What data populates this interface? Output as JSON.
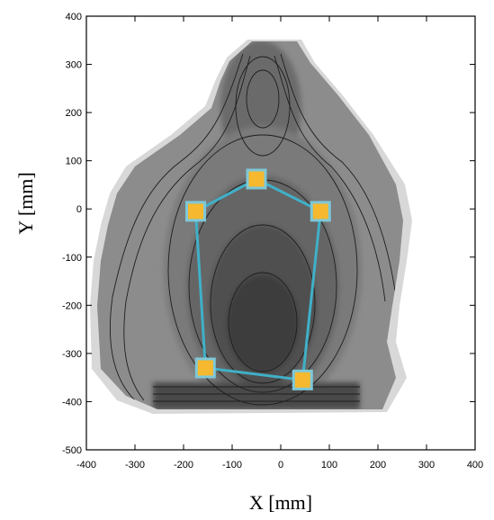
{
  "chart_data": {
    "type": "scatter",
    "title": "",
    "xlabel": "X [mm]",
    "ylabel": "Y [mm]",
    "xlim": [
      -400,
      400
    ],
    "ylim": [
      -500,
      400
    ],
    "x_ticks": [
      -400,
      -300,
      -200,
      -100,
      0,
      100,
      200,
      300,
      400
    ],
    "y_ticks": [
      400,
      300,
      200,
      100,
      0,
      -100,
      -200,
      -300,
      -400,
      -500
    ],
    "grid": false,
    "background": "grayscale contour map",
    "series": [
      {
        "points": [
          {
            "x": -50,
            "y": 62
          },
          {
            "x": 82,
            "y": -5
          },
          {
            "x": 45,
            "y": -355
          },
          {
            "x": -155,
            "y": -330
          },
          {
            "x": -175,
            "y": -5
          }
        ],
        "closed": true,
        "line_color": "#40b0c8",
        "marker_color": "#f5b82e",
        "marker_edge": "#7ec8d8"
      }
    ]
  }
}
